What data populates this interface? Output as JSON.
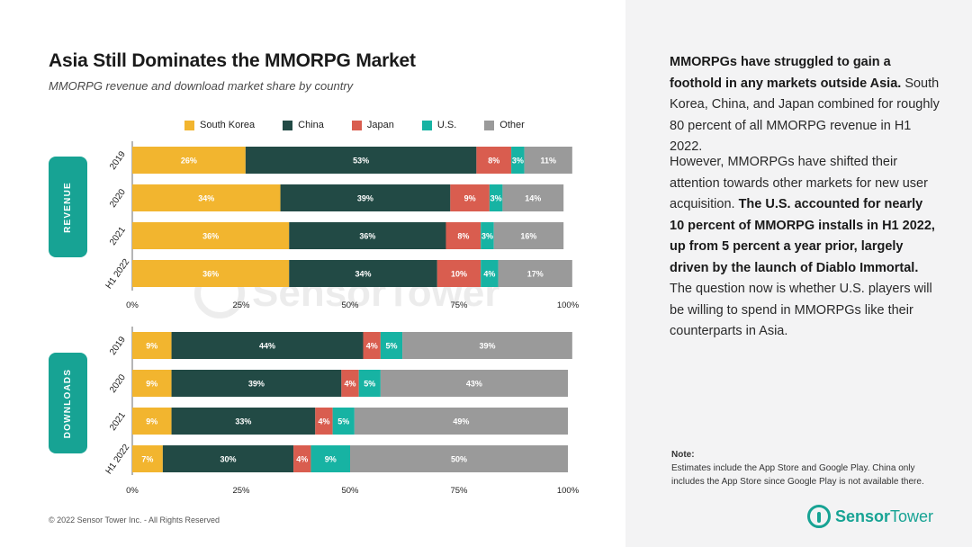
{
  "header": {
    "title": "Asia Still Dominates the MMORPG Market",
    "subtitle": "MMORPG revenue and download market share by country"
  },
  "colors": {
    "south_korea": "#f2b52f",
    "china": "#224a45",
    "japan": "#d95d4f",
    "us": "#17b3a3",
    "other": "#9a9a9a",
    "accent": "#17a394"
  },
  "chart_data": [
    {
      "type": "bar",
      "orientation": "horizontal",
      "stacked": true,
      "name": "revenue",
      "section_label": "REVENUE",
      "categories": [
        "2019",
        "2020",
        "2021",
        "H1 2022"
      ],
      "series": [
        {
          "name": "South Korea",
          "values": [
            26,
            34,
            36,
            36
          ]
        },
        {
          "name": "China",
          "values": [
            53,
            39,
            36,
            34
          ]
        },
        {
          "name": "Japan",
          "values": [
            8,
            9,
            8,
            10
          ]
        },
        {
          "name": "U.S.",
          "values": [
            3,
            3,
            3,
            4
          ]
        },
        {
          "name": "Other",
          "values": [
            11,
            14,
            16,
            17
          ]
        }
      ],
      "xticks": [
        "0%",
        "25%",
        "50%",
        "75%",
        "100%"
      ],
      "xlim": [
        0,
        100
      ],
      "value_suffix": "%"
    },
    {
      "type": "bar",
      "orientation": "horizontal",
      "stacked": true,
      "name": "downloads",
      "section_label": "DOWNLOADS",
      "categories": [
        "2019",
        "2020",
        "2021",
        "H1 2022"
      ],
      "series": [
        {
          "name": "South Korea",
          "values": [
            9,
            9,
            9,
            7
          ]
        },
        {
          "name": "China",
          "values": [
            44,
            39,
            33,
            30
          ]
        },
        {
          "name": "Japan",
          "values": [
            4,
            4,
            4,
            4
          ]
        },
        {
          "name": "U.S.",
          "values": [
            5,
            5,
            5,
            9
          ]
        },
        {
          "name": "Other",
          "values": [
            39,
            43,
            49,
            50
          ]
        }
      ],
      "xticks": [
        "0%",
        "25%",
        "50%",
        "75%",
        "100%"
      ],
      "xlim": [
        0,
        100
      ],
      "value_suffix": "%"
    }
  ],
  "legend": [
    "South Korea",
    "China",
    "Japan",
    "U.S.",
    "Other"
  ],
  "watermark": "SensorTower",
  "footer": {
    "copyright": "© 2022 Sensor Tower Inc. - All Rights Reserved"
  },
  "commentary": {
    "p1_bold": "MMORPGs have struggled to gain a foothold in any markets outside Asia.",
    "p1_rest": " South Korea, China, and Japan combined for roughly 80 percent of all MMORPG revenue in H1 2022.",
    "p2_start": "However, MMORPGs have shifted their attention towards other markets for new user acquisition. ",
    "p2_bold": "The U.S. accounted for nearly 10 percent of MMORPG installs in H1 2022, up from 5 percent a year prior, largely driven by the launch of Diablo Immortal.",
    "p2_end": " The question now is whether U.S. players will be willing to spend in MMORPGs like their counterparts in Asia.",
    "note_heading": "Note:",
    "note_text": "Estimates include the App Store and Google Play. China only includes the App Store since Google Play is not available there."
  },
  "logo": {
    "part1": "Sensor",
    "part2": "Tower"
  }
}
